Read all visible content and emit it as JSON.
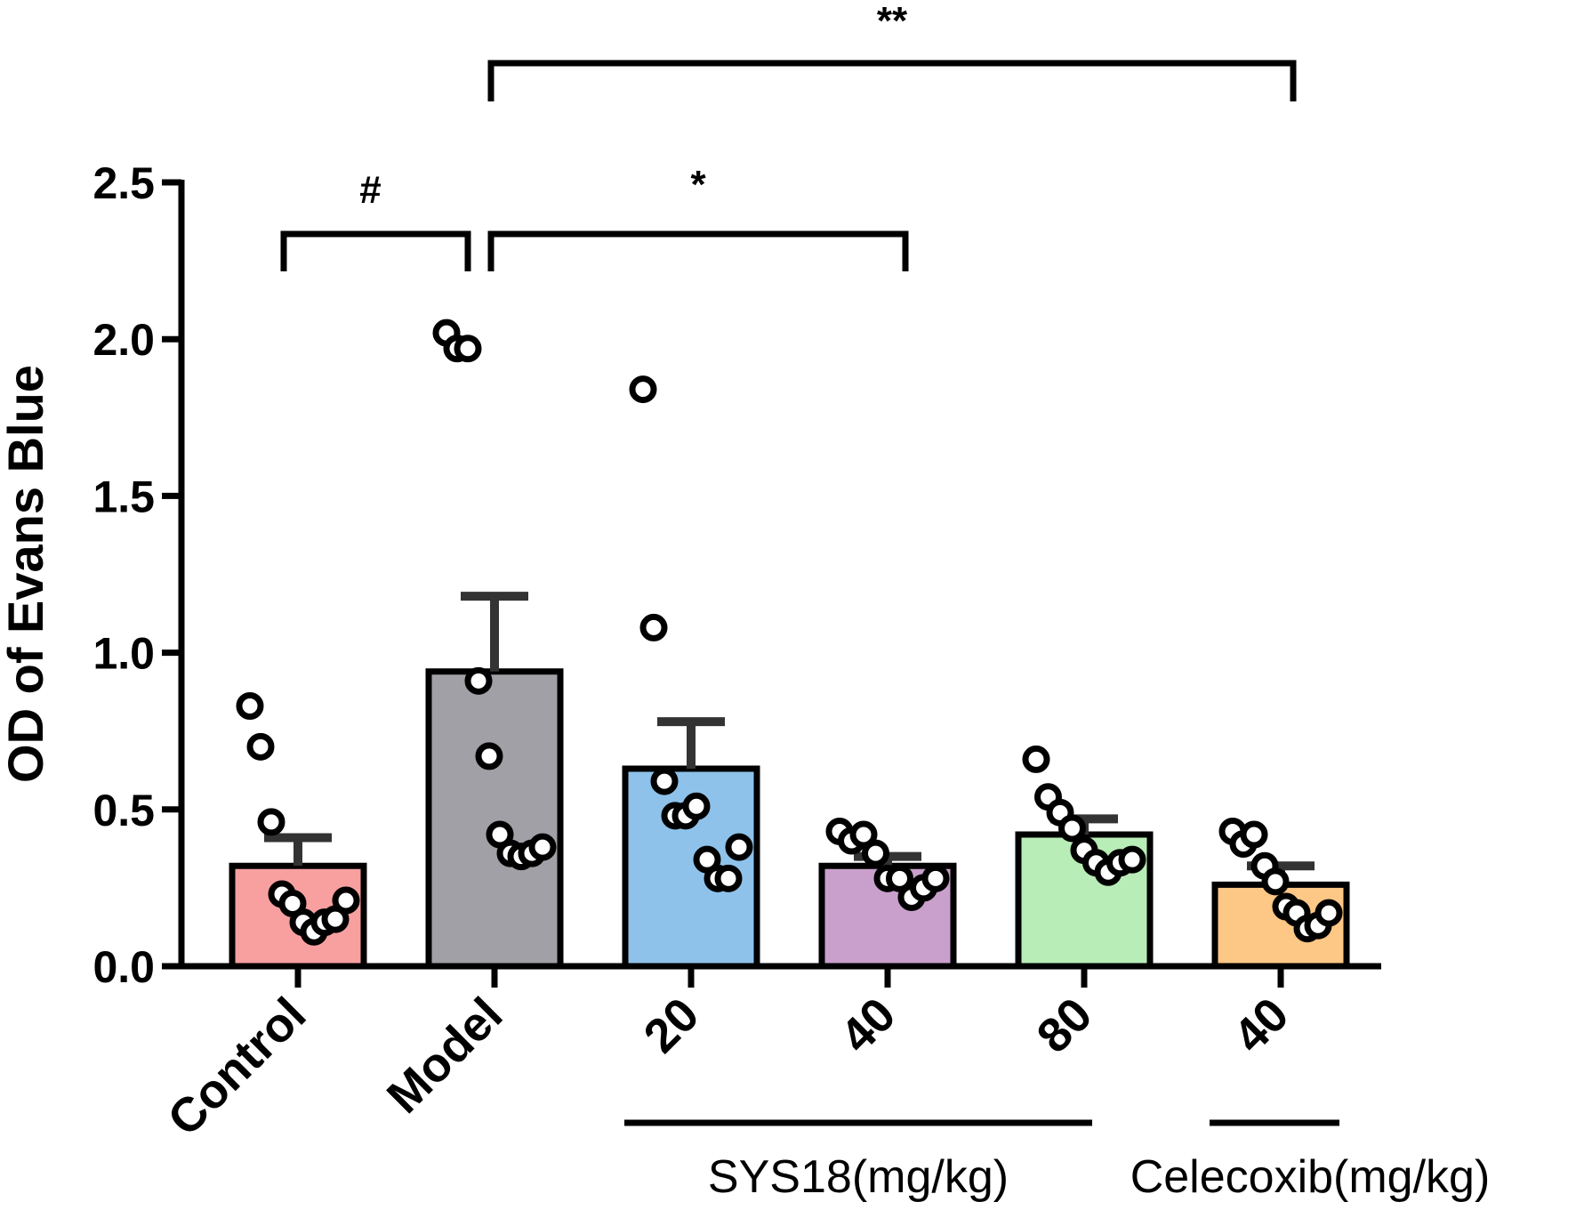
{
  "chart_data": {
    "type": "bar",
    "ylabel": "OD of Evans Blue",
    "ylim": [
      0,
      2.5
    ],
    "yticks": [
      "0.0",
      "0.5",
      "1.0",
      "1.5",
      "2.0",
      "2.5"
    ],
    "categories": [
      "Control",
      "Model",
      "20",
      "40",
      "80",
      "40"
    ],
    "colors": [
      "#F8A0A0",
      "#A1A0A6",
      "#8EC2EA",
      "#C9A0CC",
      "#B9EDB7",
      "#FDC786"
    ],
    "values": [
      0.32,
      0.94,
      0.63,
      0.32,
      0.42,
      0.26
    ],
    "errors": [
      0.09,
      0.24,
      0.15,
      0.03,
      0.05,
      0.06
    ],
    "points": [
      [
        0.83,
        0.7,
        0.46,
        0.23,
        0.2,
        0.14,
        0.11,
        0.14,
        0.15,
        0.21
      ],
      [
        2.02,
        1.97,
        1.97,
        0.91,
        0.67,
        0.42,
        0.36,
        0.35,
        0.36,
        0.38
      ],
      [
        1.84,
        1.08,
        0.59,
        0.48,
        0.48,
        0.51,
        0.34,
        0.28,
        0.28,
        0.38
      ],
      [
        0.43,
        0.4,
        0.42,
        0.36,
        0.28,
        0.28,
        0.22,
        0.25,
        0.28
      ],
      [
        0.66,
        0.54,
        0.49,
        0.44,
        0.37,
        0.33,
        0.3,
        0.33,
        0.34
      ],
      [
        0.43,
        0.39,
        0.42,
        0.32,
        0.27,
        0.19,
        0.17,
        0.12,
        0.13,
        0.17
      ]
    ],
    "groups": [
      {
        "label": "SYS18(mg/kg)",
        "from": 2,
        "to": 4
      },
      {
        "label": "Celecoxib(mg/kg)",
        "from": 5,
        "to": 5
      }
    ],
    "significance": [
      {
        "label": "#",
        "from": 0,
        "to": 1
      },
      {
        "label": "*",
        "from": 1,
        "to": 3
      },
      {
        "label": "**",
        "from": 1,
        "to": 5
      }
    ]
  }
}
